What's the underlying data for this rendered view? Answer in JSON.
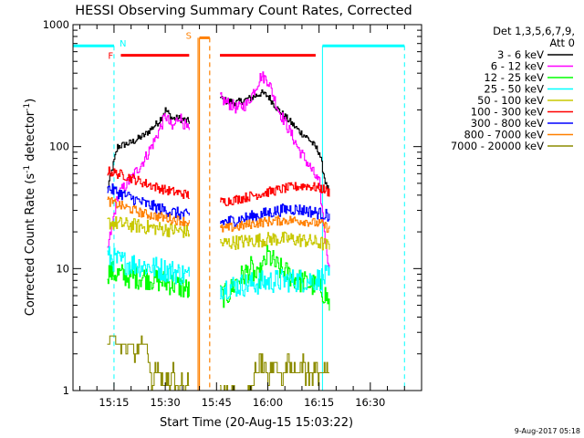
{
  "chart_data": {
    "type": "line",
    "title": "HESSI Observing Summary Count Rates, Corrected",
    "xlabel": "Start Time (20-Aug-15 15:03:22)",
    "ylabel": "Corrected Count Rate (s",
    "ylabel_sup1": "-1",
    "ylabel_mid": " detector",
    "ylabel_sup2": "-1",
    "ylabel_end": ")",
    "y_scale": "log",
    "ylim": [
      1,
      1000
    ],
    "y_ticks": [
      {
        "value": 1,
        "label": "1"
      },
      {
        "value": 10,
        "label": "10"
      },
      {
        "value": 100,
        "label": "100"
      },
      {
        "value": 1000,
        "label": "1000"
      }
    ],
    "x_range": [
      "15:03",
      "16:45"
    ],
    "x_ticks": [
      {
        "t": "15:15",
        "label": "15:15"
      },
      {
        "t": "15:30",
        "label": "15:30"
      },
      {
        "t": "15:45",
        "label": "15:45"
      },
      {
        "t": "16:00",
        "label": "16:00"
      },
      {
        "t": "16:15",
        "label": "16:15"
      },
      {
        "t": "16:30",
        "label": "16:30"
      }
    ],
    "legend": {
      "position": "outside-right",
      "header1": "Det 1,3,5,6,7,9,",
      "header2": "Att 0"
    },
    "flags": {
      "night_label": "N",
      "flare_label": "F",
      "saa_label": "S",
      "night_color": "#00ffff",
      "flare_color": "#ff0000",
      "saa_color": "#ff8000",
      "night_bars": [
        [
          "15:03",
          "15:15"
        ],
        [
          "16:16",
          "16:40"
        ]
      ],
      "night_level": 670,
      "flare_bars": [
        [
          "15:17",
          "15:37"
        ],
        [
          "15:46",
          "16:14"
        ]
      ],
      "flare_level": 560,
      "saa_band": [
        "15:40",
        "15:43"
      ],
      "saa_level": 780,
      "night_edges": [
        "15:15",
        "16:16",
        "16:40"
      ],
      "saa_edges": [
        "15:40",
        "15:43"
      ],
      "data_gap": [
        "15:37",
        "15:46"
      ]
    },
    "segments": [
      [
        "15:13",
        "15:37"
      ],
      [
        "15:46",
        "16:18"
      ]
    ],
    "series": [
      {
        "name": "3 - 6 keV",
        "color": "#000000",
        "x": [
          "15:13",
          "15:16",
          "15:20",
          "15:24",
          "15:28",
          "15:30",
          "15:32",
          "15:34",
          "15:37",
          "15:46",
          "15:48",
          "15:51",
          "15:55",
          "15:58",
          "16:00",
          "16:03",
          "16:06",
          "16:09",
          "16:12",
          "16:15",
          "16:17",
          "16:18"
        ],
        "y": [
          45,
          100,
          108,
          125,
          160,
          200,
          170,
          170,
          160,
          250,
          235,
          230,
          250,
          275,
          260,
          200,
          165,
          135,
          115,
          90,
          48,
          42
        ]
      },
      {
        "name": "6 - 12 keV",
        "color": "#ff00ff",
        "x": [
          "15:13",
          "15:16",
          "15:20",
          "15:24",
          "15:27",
          "15:30",
          "15:32",
          "15:34",
          "15:37",
          "15:46",
          "15:48",
          "15:51",
          "15:54",
          "15:58",
          "16:00",
          "16:03",
          "16:06",
          "16:09",
          "16:12",
          "16:15",
          "16:17",
          "16:18"
        ],
        "y": [
          14,
          40,
          55,
          80,
          115,
          180,
          140,
          180,
          130,
          250,
          230,
          205,
          225,
          380,
          350,
          200,
          140,
          95,
          70,
          50,
          15,
          10
        ]
      },
      {
        "name": "12 - 25 keV",
        "color": "#00ff00",
        "x": [
          "15:13",
          "15:16",
          "15:20",
          "15:24",
          "15:28",
          "15:32",
          "15:35",
          "15:37",
          "15:46",
          "15:48",
          "15:51",
          "15:55",
          "15:57",
          "16:00",
          "16:03",
          "16:06",
          "16:09",
          "16:12",
          "16:15",
          "16:17",
          "16:18"
        ],
        "y": [
          9.5,
          9,
          8.5,
          8.5,
          8,
          7.5,
          7,
          6.5,
          6,
          6,
          8,
          10,
          8,
          13,
          10,
          9,
          8,
          7.5,
          7,
          6,
          5
        ]
      },
      {
        "name": "25 - 50 keV",
        "color": "#00ffff",
        "x": [
          "15:13",
          "15:16",
          "15:20",
          "15:24",
          "15:28",
          "15:32",
          "15:35",
          "15:37",
          "15:46",
          "15:50",
          "15:55",
          "16:00",
          "16:05",
          "16:10",
          "16:15",
          "16:17",
          "16:18"
        ],
        "y": [
          12.5,
          11.5,
          11,
          10.5,
          10,
          9.5,
          9,
          8.5,
          7,
          7.2,
          7.5,
          7.8,
          8,
          8,
          8.2,
          8.5,
          8.5
        ]
      },
      {
        "name": "50 - 100 keV",
        "color": "#c8c800",
        "x": [
          "15:13",
          "15:18",
          "15:24",
          "15:30",
          "15:37",
          "15:46",
          "15:51",
          "15:56",
          "16:01",
          "16:06",
          "16:11",
          "16:16",
          "16:18"
        ],
        "y": [
          24,
          23,
          22,
          21,
          20,
          16,
          16.5,
          17,
          17.5,
          17.5,
          17,
          16,
          15
        ]
      },
      {
        "name": "100 - 300 keV",
        "color": "#ff0000",
        "x": [
          "15:13",
          "15:18",
          "15:24",
          "15:30",
          "15:37",
          "15:46",
          "15:51",
          "15:56",
          "16:01",
          "16:06",
          "16:11",
          "16:16",
          "16:18"
        ],
        "y": [
          63,
          58,
          50,
          44,
          40,
          35,
          37,
          40,
          43,
          46,
          48,
          45,
          42
        ]
      },
      {
        "name": "300 - 800 keV",
        "color": "#0000ff",
        "x": [
          "15:13",
          "15:18",
          "15:24",
          "15:30",
          "15:37",
          "15:46",
          "15:51",
          "15:56",
          "16:01",
          "16:06",
          "16:11",
          "16:16",
          "16:18"
        ],
        "y": [
          46,
          40,
          34,
          30,
          27,
          24,
          25,
          27,
          29,
          31,
          30,
          28,
          27
        ]
      },
      {
        "name": "800 - 7000 keV",
        "color": "#ff8000",
        "x": [
          "15:13",
          "15:18",
          "15:24",
          "15:30",
          "15:37",
          "15:46",
          "15:51",
          "15:56",
          "16:01",
          "16:06",
          "16:11",
          "16:16",
          "16:18"
        ],
        "y": [
          36,
          32,
          28,
          26,
          24,
          21,
          22,
          23.5,
          24.5,
          25,
          24.5,
          23,
          21
        ]
      },
      {
        "name": "7000 - 20000 keV",
        "color": "#8c8c00",
        "x": [
          "15:13",
          "15:15",
          "15:17",
          "15:19",
          "15:21",
          "15:23",
          "15:25",
          "15:26",
          "15:28",
          "15:30",
          "15:32",
          "15:34",
          "15:36",
          "15:37",
          "15:46",
          "15:50",
          "15:55",
          "15:58",
          "16:00",
          "16:02",
          "16:04",
          "16:06",
          "16:08",
          "16:10",
          "16:12",
          "16:14",
          "16:16",
          "16:18"
        ],
        "y": [
          2.5,
          2.7,
          2.3,
          2.5,
          2.1,
          2.4,
          1.8,
          1.2,
          1.5,
          1.1,
          1.3,
          1.05,
          1.15,
          1.0,
          1.0,
          1.05,
          1.0,
          1.8,
          1.4,
          1.7,
          1.2,
          1.6,
          1.3,
          1.7,
          1.4,
          1.6,
          1.3,
          1.5
        ]
      }
    ]
  },
  "footer": {
    "timestamp": "9-Aug-2017 05:18"
  }
}
